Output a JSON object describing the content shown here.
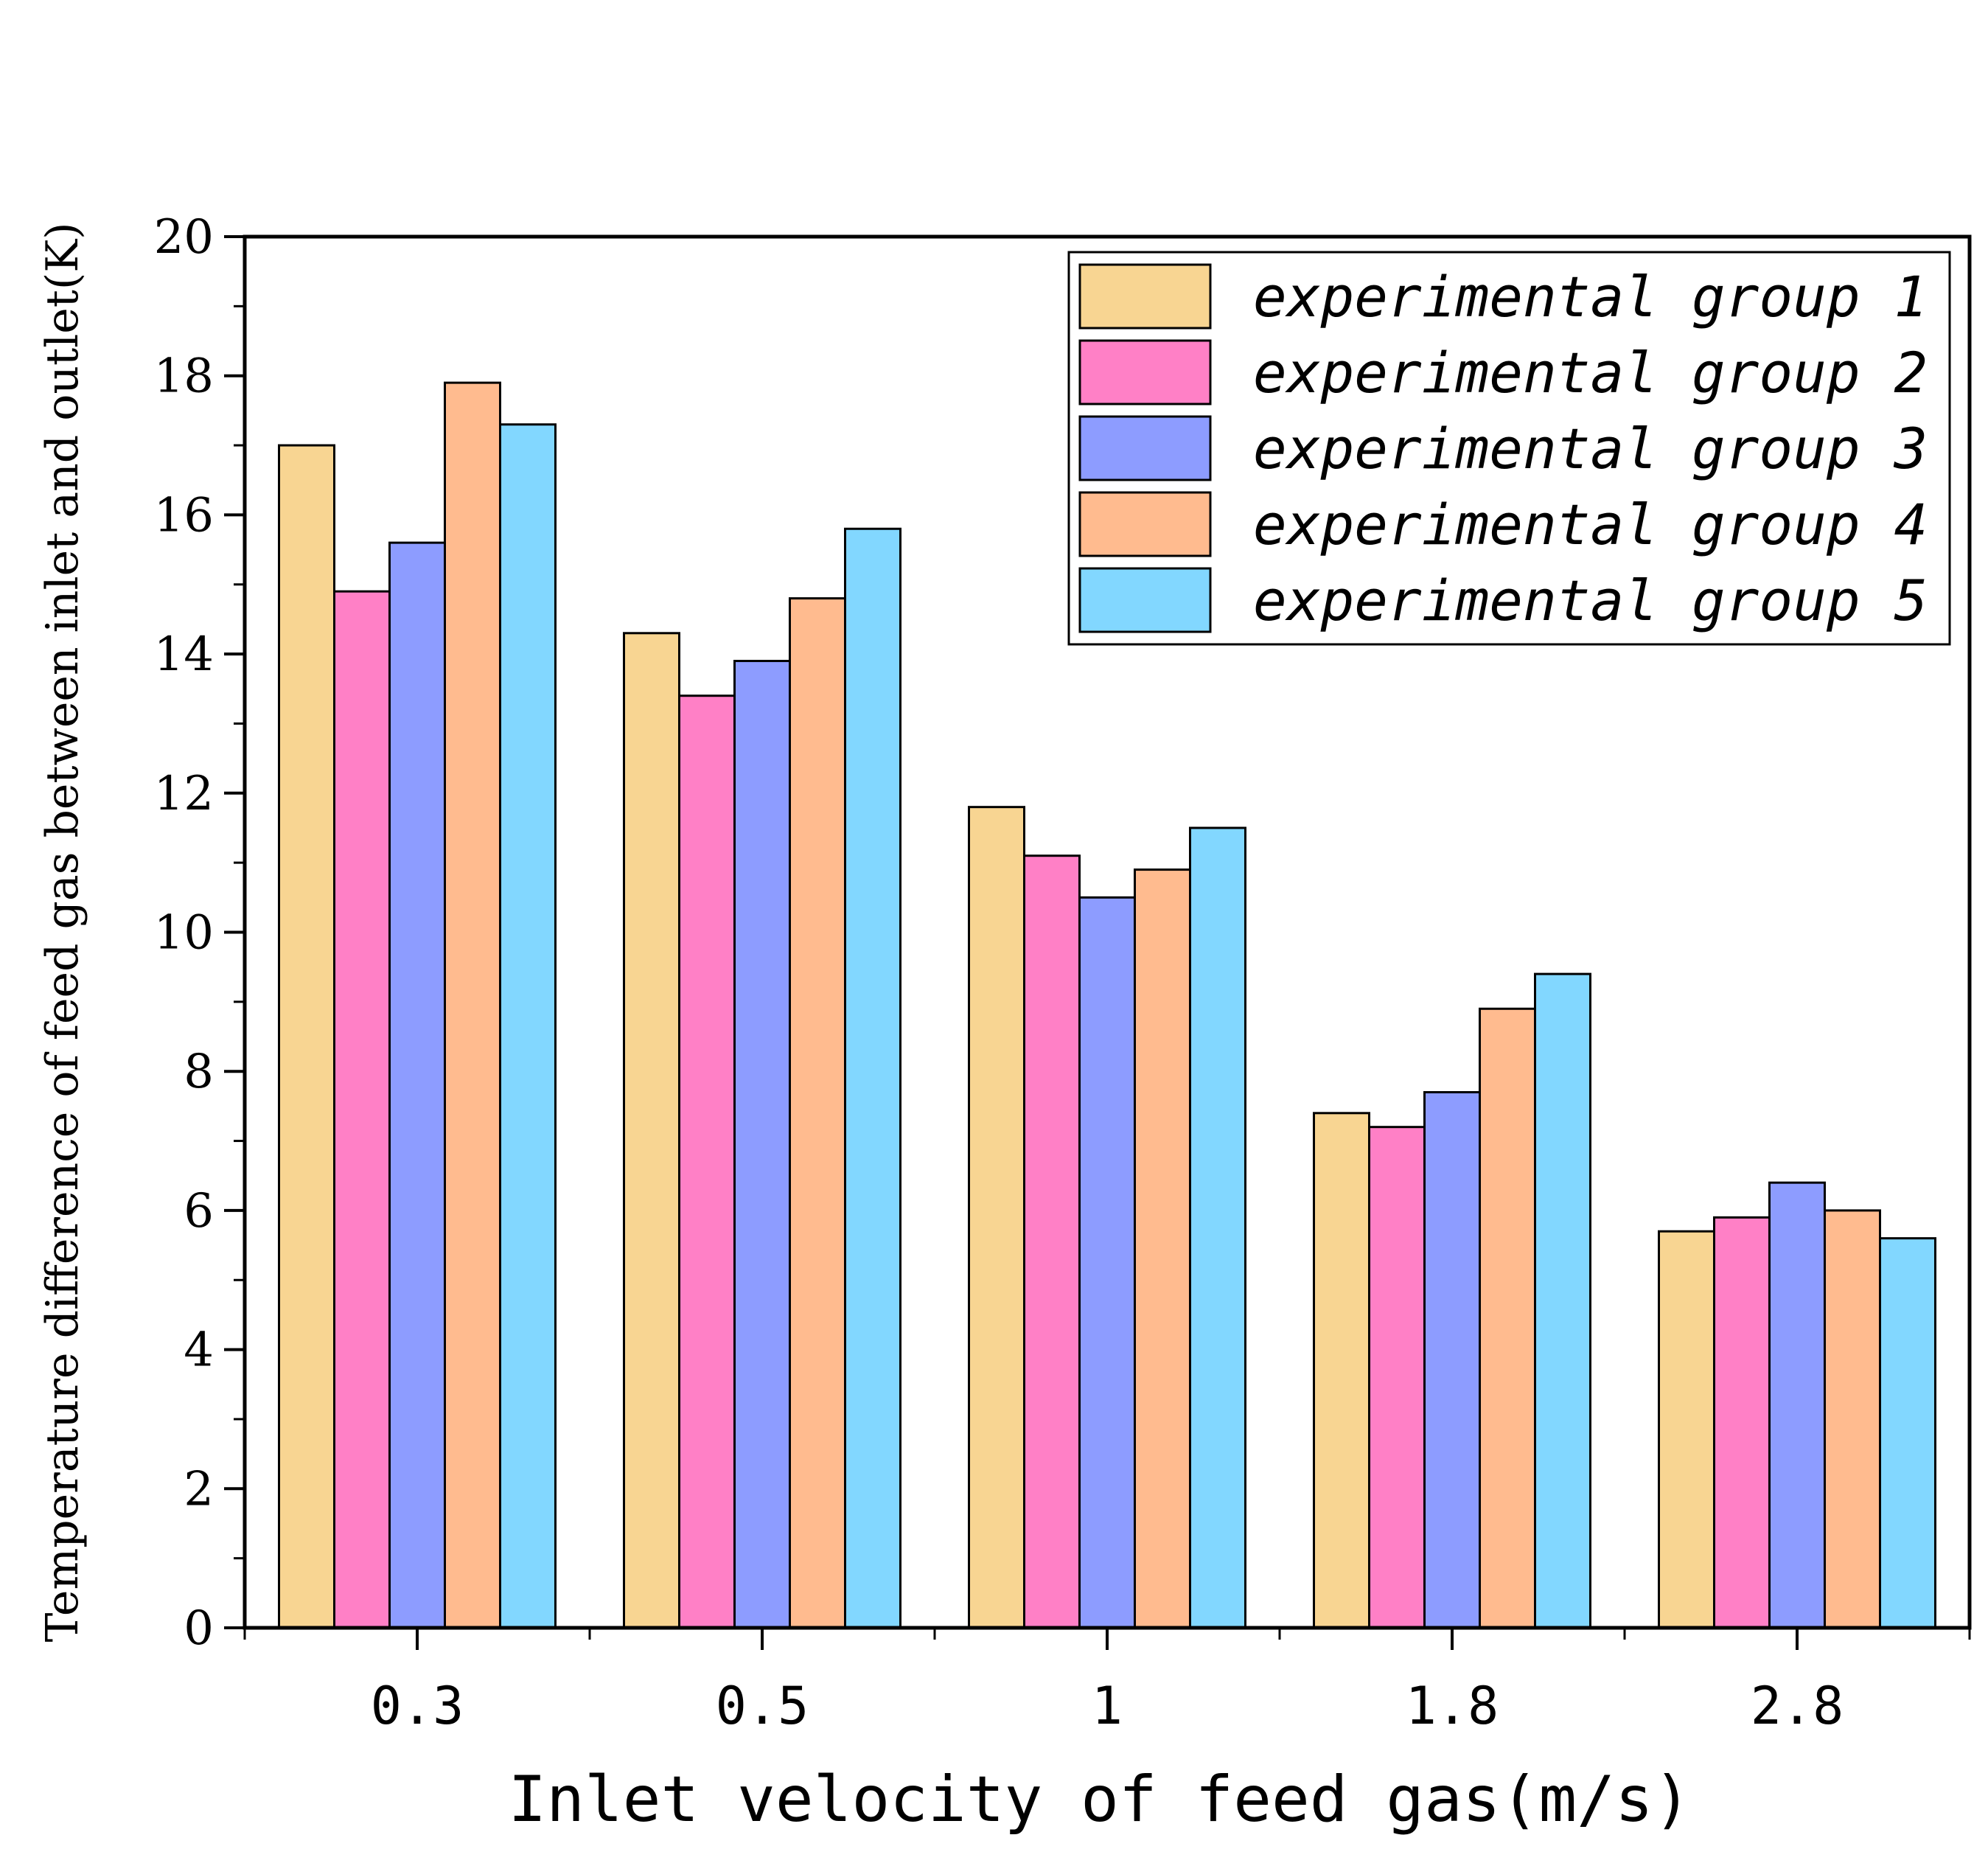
{
  "chart_data": {
    "type": "bar",
    "title": "",
    "xlabel": "Inlet velocity of feed gas(m/s)",
    "ylabel": "Temperature difference of feed gas between inlet and outlet(K)",
    "ylim": [
      0,
      20
    ],
    "yticks": [
      "0",
      "2",
      "4",
      "6",
      "8",
      "10",
      "12",
      "14",
      "16",
      "18",
      "20"
    ],
    "categories": [
      "0.3",
      "0.5",
      "1",
      "1.8",
      "2.8"
    ],
    "legend_position": "top-right",
    "grid": false,
    "series": [
      {
        "name": "experimental group 1",
        "color": "#F8D592",
        "values": [
          17.0,
          14.3,
          11.8,
          7.4,
          5.7
        ]
      },
      {
        "name": "experimental group 2",
        "color": "#FF80C6",
        "values": [
          14.9,
          13.4,
          11.1,
          7.2,
          5.9
        ]
      },
      {
        "name": "experimental group 3",
        "color": "#8D9CFF",
        "values": [
          15.6,
          13.9,
          10.5,
          7.7,
          6.4
        ]
      },
      {
        "name": "experimental group 4",
        "color": "#FFBB8F",
        "values": [
          17.9,
          14.8,
          10.9,
          8.9,
          6.0
        ]
      },
      {
        "name": "experimental group 5",
        "color": "#82D7FF",
        "values": [
          17.3,
          15.8,
          11.5,
          9.4,
          5.6
        ]
      }
    ]
  }
}
